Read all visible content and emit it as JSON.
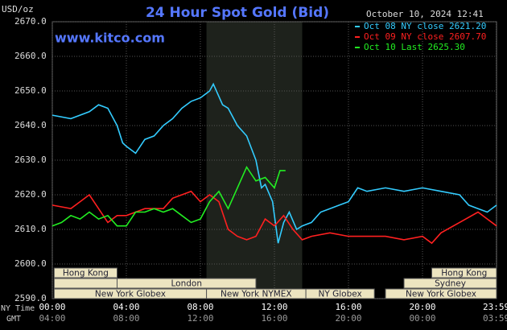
{
  "chart_data": {
    "type": "line",
    "title": "24 Hour Spot Gold (Bid)",
    "site": "www.kitco.com",
    "timestamp": "October 10, 2024 12:41",
    "y_label": "USD/oz",
    "x_row_labels": [
      "NY Time",
      "GMT"
    ],
    "xlim": [
      0,
      24
    ],
    "xticks": [
      {
        "value": 0,
        "label": "00:00"
      },
      {
        "value": 4,
        "label": "04:00"
      },
      {
        "value": 8,
        "label": "08:00"
      },
      {
        "value": 12,
        "label": "12:00"
      },
      {
        "value": 16,
        "label": "16:00"
      },
      {
        "value": 20,
        "label": "20:00"
      },
      {
        "value": 23.983,
        "label": "23:59"
      }
    ],
    "gmt_tick_labels": [
      "04:00",
      "08:00",
      "12:00",
      "16:00",
      "20:00",
      "00:00",
      "03:59"
    ],
    "ylim": [
      2590,
      2670
    ],
    "yticks": [
      {
        "value": 2590,
        "label": "2590.0"
      },
      {
        "value": 2600,
        "label": "2600.0"
      },
      {
        "value": 2610,
        "label": "2610.0"
      },
      {
        "value": 2620,
        "label": "2620.0"
      },
      {
        "value": 2630,
        "label": "2630.0"
      },
      {
        "value": 2640,
        "label": "2640.0"
      },
      {
        "value": 2650,
        "label": "2650.0"
      },
      {
        "value": 2660,
        "label": "2660.0"
      },
      {
        "value": 2670,
        "label": "2670.0"
      }
    ],
    "grid": true,
    "shaded": [
      8.33,
      13.5
    ],
    "sessions": [
      {
        "label": "Hong Kong",
        "start": 0.1,
        "end": 3.5
      },
      {
        "label": "Hong Kong",
        "start": 20.5,
        "end": 24
      },
      {
        "label": "London",
        "start": 3.5,
        "end": 11
      },
      {
        "label": "Sydney",
        "start": 19,
        "end": 24
      },
      {
        "label": "New York Globex",
        "start": 0.1,
        "end": 8.33
      },
      {
        "label": "New York NYMEX",
        "start": 8.33,
        "end": 13.7
      },
      {
        "label": "NY Globex",
        "start": 13.7,
        "end": 17.4
      },
      {
        "label": "New York Globex",
        "start": 18,
        "end": 24
      }
    ],
    "series": [
      {
        "name": "Oct 08 NY close 2621.20",
        "color": "#33ccff",
        "x": [
          0,
          1,
          2,
          2.5,
          3,
          3.5,
          3.8,
          4,
          4.5,
          5,
          5.5,
          6,
          6.5,
          7,
          7.5,
          8,
          8.5,
          8.7,
          9.2,
          9.5,
          10,
          10.5,
          11,
          11.3,
          11.5,
          11.9,
          12.2,
          12.5,
          12.8,
          13.2,
          13.5,
          14,
          14.5,
          15,
          15.5,
          16,
          16.5,
          17,
          18,
          19,
          20,
          21,
          22,
          22.5,
          23,
          23.5,
          24
        ],
        "values": [
          2643,
          2642,
          2644,
          2646,
          2645,
          2640,
          2635,
          2634,
          2632,
          2636,
          2637,
          2640,
          2642,
          2645,
          2647,
          2648,
          2650,
          2652,
          2646,
          2645,
          2640,
          2637,
          2630,
          2622,
          2623,
          2618,
          2606,
          2612,
          2615,
          2610,
          2611,
          2612,
          2615,
          2616,
          2617,
          2618,
          2622,
          2621,
          2622,
          2621,
          2622,
          2621,
          2620,
          2617,
          2616,
          2615,
          2617
        ]
      },
      {
        "name": "Oct 09 NY close 2607.70",
        "color": "#ff2020",
        "x": [
          0,
          1,
          1.5,
          2,
          2.5,
          3,
          3.5,
          4,
          4.5,
          5,
          6,
          6.5,
          7,
          7.5,
          8,
          8.5,
          9,
          9.5,
          10,
          10.5,
          11,
          11.5,
          12,
          12.5,
          13,
          13.5,
          14,
          15,
          16,
          17,
          18,
          19,
          20,
          20.5,
          21,
          22,
          23,
          23.5,
          24
        ],
        "values": [
          2617,
          2616,
          2618,
          2620,
          2616,
          2612,
          2614,
          2614,
          2615,
          2616,
          2616,
          2619,
          2620,
          2621,
          2618,
          2620,
          2618,
          2610,
          2608,
          2607,
          2608,
          2613,
          2611,
          2614,
          2610,
          2607,
          2608,
          2609,
          2608,
          2608,
          2608,
          2607,
          2608,
          2606,
          2609,
          2612,
          2615,
          2613,
          2611
        ]
      },
      {
        "name": "Oct 10 Last 2625.30",
        "color": "#22ee22",
        "x": [
          0,
          0.5,
          1,
          1.5,
          2,
          2.5,
          3,
          3.5,
          4,
          4.5,
          5,
          5.5,
          6,
          6.5,
          7,
          7.5,
          8,
          8.5,
          9,
          9.5,
          10,
          10.5,
          11,
          11.5,
          12,
          12.3,
          12.6
        ],
        "values": [
          2611,
          2612,
          2614,
          2613,
          2615,
          2613,
          2614,
          2611,
          2611,
          2615,
          2615,
          2616,
          2615,
          2616,
          2614,
          2612,
          2613,
          2618,
          2621,
          2616,
          2622,
          2628,
          2624,
          2625,
          2622,
          2627,
          2627
        ]
      }
    ]
  }
}
